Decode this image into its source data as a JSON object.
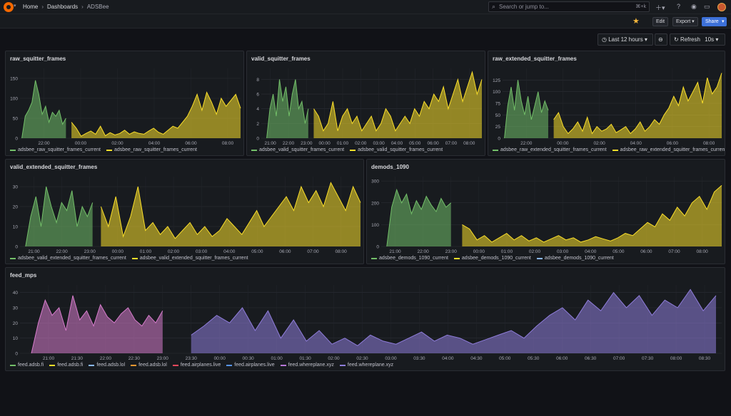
{
  "topbar": {
    "breadcrumb": [
      "Home",
      "Dashboards",
      "ADSBee"
    ],
    "search_placeholder": "Search or jump to...",
    "search_shortcut": "⌘+k"
  },
  "toolbar": {
    "edit_label": "Edit",
    "export_label": "Export",
    "share_label": "Share"
  },
  "time_controls": {
    "range_label": "Last 12 hours",
    "refresh_label": "Refresh",
    "refresh_interval": "10s"
  },
  "colors": {
    "green": "#73bf69",
    "yellow": "#fade2a",
    "blue": "#8ab8ff",
    "orange": "#ff9830",
    "red": "#f2495c",
    "lightblue": "#5794f2",
    "purple": "#b877d9",
    "violet": "#8f7ddb",
    "pink": "#d77ccc"
  },
  "panels": [
    {
      "id": "raw_squitter_frames",
      "title": "raw_squitter_frames",
      "legend": [
        {
          "label": "adsbee_raw_squitter_frames_current",
          "color": "#73bf69"
        },
        {
          "label": "adsbee_raw_squitter_frames_current",
          "color": "#fade2a"
        }
      ],
      "chart_data": {
        "type": "area",
        "y_ticks": [
          "0",
          "50",
          "100",
          "150"
        ],
        "x_ticks": [
          "22:00",
          "00:00",
          "02:00",
          "04:00",
          "06:00",
          "08:00"
        ],
        "ylim": [
          0,
          175
        ],
        "grid": true,
        "series": [
          {
            "color": "#73bf69",
            "x_range": [
              20.8,
              23.2
            ],
            "points": [
              0,
              55,
              70,
              90,
              145,
              110,
              60,
              80,
              40,
              65,
              55,
              70,
              35,
              50
            ]
          },
          {
            "color": "#fade2a",
            "x_range": [
              23.5,
              32.7
            ],
            "points": [
              40,
              25,
              5,
              12,
              18,
              10,
              30,
              6,
              14,
              8,
              12,
              20,
              10,
              16,
              12,
              10,
              18,
              25,
              15,
              10,
              20,
              30,
              25,
              40,
              55,
              80,
              110,
              70,
              115,
              90,
              60,
              100,
              80,
              95,
              110,
              75
            ]
          }
        ]
      }
    },
    {
      "id": "valid_squitter_frames",
      "title": "valid_squitter_frames",
      "legend": [
        {
          "label": "adsbee_valid_squitter_frames_current",
          "color": "#73bf69"
        },
        {
          "label": "adsbee_valid_squitter_frames_current",
          "color": "#fade2a"
        }
      ],
      "chart_data": {
        "type": "area",
        "y_ticks": [
          "0",
          "2",
          "4",
          "6",
          "8"
        ],
        "x_ticks": [
          "21:00",
          "22:00",
          "23:00",
          "00:00",
          "01:00",
          "02:00",
          "03:00",
          "04:00",
          "05:00",
          "06:00",
          "07:00",
          "08:00"
        ],
        "ylim": [
          0,
          9.5
        ],
        "grid": true,
        "series": [
          {
            "color": "#73bf69",
            "x_range": [
              20.8,
              23.1
            ],
            "points": [
              0,
              4,
              6,
              3,
              8,
              5,
              7,
              3,
              6,
              8,
              4,
              5,
              2,
              4
            ]
          },
          {
            "color": "#fade2a",
            "x_range": [
              23.4,
              32.7
            ],
            "points": [
              4,
              3,
              1,
              2,
              5,
              1,
              3,
              4,
              2,
              3,
              1,
              2,
              3,
              1,
              2,
              4,
              3,
              1,
              2,
              3,
              2,
              4,
              3,
              5,
              4,
              6,
              5,
              7,
              4,
              6,
              8,
              5,
              7,
              9,
              6,
              8
            ]
          }
        ]
      }
    },
    {
      "id": "raw_extended_squitter_frames",
      "title": "raw_extended_squitter_frames",
      "legend": [
        {
          "label": "adsbee_raw_extended_squitter_frames_current",
          "color": "#73bf69"
        },
        {
          "label": "adsbee_raw_extended_squitter_frames_current",
          "color": "#fade2a"
        }
      ],
      "chart_data": {
        "type": "area",
        "y_ticks": [
          "0",
          "25",
          "50",
          "75",
          "100",
          "125"
        ],
        "x_ticks": [
          "22:00",
          "00:00",
          "02:00",
          "04:00",
          "06:00",
          "08:00"
        ],
        "ylim": [
          0,
          150
        ],
        "grid": true,
        "series": [
          {
            "color": "#73bf69",
            "x_range": [
              20.8,
              23.2
            ],
            "points": [
              0,
              70,
              110,
              60,
              125,
              80,
              50,
              90,
              40,
              70,
              100,
              55,
              80,
              60
            ]
          },
          {
            "color": "#fade2a",
            "x_range": [
              23.5,
              32.7
            ],
            "points": [
              40,
              55,
              25,
              10,
              20,
              35,
              15,
              45,
              10,
              25,
              15,
              20,
              30,
              12,
              18,
              25,
              10,
              20,
              35,
              15,
              25,
              40,
              30,
              50,
              65,
              90,
              70,
              110,
              80,
              100,
              120,
              75,
              130,
              95,
              110,
              140
            ]
          }
        ]
      }
    },
    {
      "id": "valid_extended_squitter_frames",
      "title": "valid_extended_squitter_frames",
      "legend": [
        {
          "label": "adsbee_valid_extended_squitter_frames_current",
          "color": "#73bf69"
        },
        {
          "label": "adsbee_valid_extended_squitter_frames_current",
          "color": "#fade2a"
        }
      ],
      "chart_data": {
        "type": "area",
        "y_ticks": [
          "0",
          "10",
          "20",
          "30"
        ],
        "x_ticks": [
          "21:00",
          "22:00",
          "23:00",
          "00:00",
          "01:00",
          "02:00",
          "03:00",
          "04:00",
          "05:00",
          "06:00",
          "07:00",
          "08:00"
        ],
        "ylim": [
          0,
          35
        ],
        "grid": true,
        "series": [
          {
            "color": "#73bf69",
            "x_range": [
              20.7,
              23.1
            ],
            "points": [
              0,
              15,
              25,
              10,
              30,
              20,
              12,
              22,
              18,
              28,
              10,
              20,
              15,
              22
            ]
          },
          {
            "color": "#fade2a",
            "x_range": [
              23.4,
              32.7
            ],
            "points": [
              20,
              10,
              25,
              5,
              15,
              30,
              8,
              12,
              6,
              10,
              4,
              8,
              12,
              6,
              10,
              5,
              8,
              14,
              10,
              6,
              12,
              18,
              10,
              15,
              20,
              25,
              18,
              30,
              22,
              28,
              20,
              32,
              25,
              18,
              30,
              22
            ]
          }
        ]
      }
    },
    {
      "id": "demods_1090",
      "title": "demods_1090",
      "legend": [
        {
          "label": "adsbee_demods_1090_current",
          "color": "#73bf69"
        },
        {
          "label": "adsbee_demods_1090_current",
          "color": "#fade2a"
        },
        {
          "label": "adsbee_demods_1090_current",
          "color": "#8ab8ff"
        }
      ],
      "chart_data": {
        "type": "area",
        "y_ticks": [
          "0",
          "100",
          "200",
          "300"
        ],
        "x_ticks": [
          "21:00",
          "22:00",
          "23:00",
          "00:00",
          "01:00",
          "02:00",
          "03:00",
          "04:00",
          "05:00",
          "06:00",
          "07:00",
          "08:00"
        ],
        "ylim": [
          0,
          320
        ],
        "grid": true,
        "series": [
          {
            "color": "#73bf69",
            "x_range": [
              20.7,
              23.0
            ],
            "points": [
              0,
              180,
              260,
              200,
              240,
              150,
              210,
              170,
              230,
              190,
              160,
              220,
              180,
              200
            ]
          },
          {
            "color": "#fade2a",
            "x_range": [
              23.4,
              32.7
            ],
            "points": [
              100,
              80,
              30,
              50,
              20,
              40,
              60,
              30,
              50,
              25,
              40,
              20,
              35,
              50,
              30,
              40,
              20,
              30,
              45,
              35,
              25,
              40,
              60,
              50,
              80,
              110,
              90,
              150,
              120,
              180,
              140,
              200,
              230,
              170,
              250,
              280
            ]
          }
        ]
      }
    },
    {
      "id": "feed_mps",
      "title": "feed_mps",
      "legend": [
        {
          "label": "feed.adsb.fi",
          "color": "#73bf69"
        },
        {
          "label": "feed.adsb.fi",
          "color": "#fade2a"
        },
        {
          "label": "feed.adsb.lol",
          "color": "#8ab8ff"
        },
        {
          "label": "feed.adsb.lol",
          "color": "#ff9830"
        },
        {
          "label": "feed.airplanes.live",
          "color": "#f2495c"
        },
        {
          "label": "feed.airplanes.live",
          "color": "#5794f2"
        },
        {
          "label": "feed.whereplane.xyz",
          "color": "#b877d9"
        },
        {
          "label": "feed.whereplane.xyz",
          "color": "#8f7ddb"
        }
      ],
      "chart_data": {
        "type": "area",
        "y_ticks": [
          "0",
          "10",
          "20",
          "30",
          "40"
        ],
        "x_ticks": [
          "21:00",
          "21:30",
          "22:00",
          "22:30",
          "23:00",
          "23:30",
          "00:00",
          "00:30",
          "01:00",
          "01:30",
          "02:00",
          "02:30",
          "03:00",
          "03:30",
          "04:00",
          "04:30",
          "05:00",
          "05:30",
          "06:00",
          "06:30",
          "07:00",
          "07:30",
          "08:00",
          "08:30"
        ],
        "ylim": [
          0,
          45
        ],
        "grid": true,
        "series": [
          {
            "color": "#d77ccc",
            "x_range": [
              20.7,
              23.0
            ],
            "points": [
              0,
              20,
              35,
              25,
              30,
              15,
              38,
              22,
              28,
              18,
              32,
              24,
              20,
              26,
              30,
              22,
              18,
              25,
              20,
              28
            ]
          },
          {
            "color": "#8f7ddb",
            "x_range": [
              23.5,
              32.7
            ],
            "points": [
              12,
              18,
              25,
              20,
              30,
              15,
              28,
              10,
              22,
              8,
              15,
              6,
              10,
              5,
              12,
              8,
              6,
              10,
              14,
              8,
              12,
              10,
              6,
              9,
              12,
              15,
              10,
              18,
              25,
              30,
              22,
              35,
              28,
              40,
              30,
              38,
              25,
              35,
              30,
              42,
              28,
              38
            ]
          }
        ]
      }
    }
  ]
}
